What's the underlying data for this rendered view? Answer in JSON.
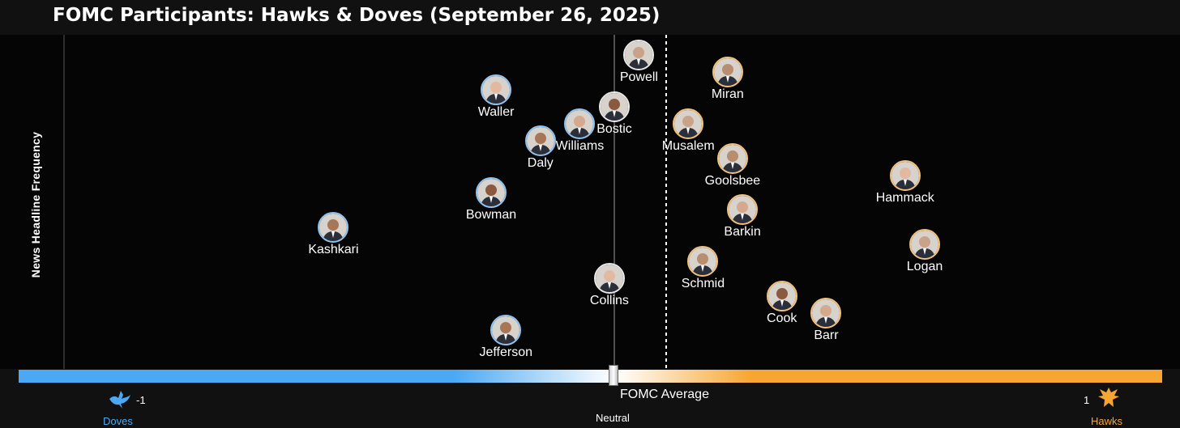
{
  "chart_data": {
    "type": "scatter",
    "title": "FOMC Participants: Hawks & Doves (September 26, 2025)",
    "ylabel": "News Headline Frequency",
    "xlim": [
      -1,
      1
    ],
    "x_axis": {
      "left_value": "-1",
      "left_label": "Doves",
      "right_value": "1",
      "right_label": "Hawks",
      "center_label": "Neutral",
      "average_label": "FOMC Average"
    },
    "colors": {
      "dove": "#4aa8f4",
      "hawk": "#f7a632",
      "neutral": "#ffffff"
    },
    "points": [
      {
        "name": "Powell",
        "x": 0.05,
        "y": 10.5
      },
      {
        "name": "Miran",
        "x": 0.23,
        "y": 10.0
      },
      {
        "name": "Waller",
        "x": -0.24,
        "y": 9.5
      },
      {
        "name": "Bostic",
        "x": 0.0,
        "y": 9.0
      },
      {
        "name": "Williams",
        "x": -0.07,
        "y": 8.5
      },
      {
        "name": "Daly",
        "x": -0.15,
        "y": 8.0
      },
      {
        "name": "Musalem",
        "x": 0.15,
        "y": 8.5
      },
      {
        "name": "Goolsbee",
        "x": 0.24,
        "y": 7.5
      },
      {
        "name": "Hammack",
        "x": 0.59,
        "y": 7.0
      },
      {
        "name": "Bowman",
        "x": -0.25,
        "y": 6.5
      },
      {
        "name": "Barkin",
        "x": 0.26,
        "y": 6.0
      },
      {
        "name": "Kashkari",
        "x": -0.57,
        "y": 5.5
      },
      {
        "name": "Logan",
        "x": 0.63,
        "y": 5.0
      },
      {
        "name": "Schmid",
        "x": 0.18,
        "y": 4.5
      },
      {
        "name": "Collins",
        "x": -0.01,
        "y": 4.0
      },
      {
        "name": "Cook",
        "x": 0.34,
        "y": 3.5
      },
      {
        "name": "Barr",
        "x": 0.43,
        "y": 3.0
      },
      {
        "name": "Jefferson",
        "x": -0.22,
        "y": 2.5
      }
    ]
  }
}
